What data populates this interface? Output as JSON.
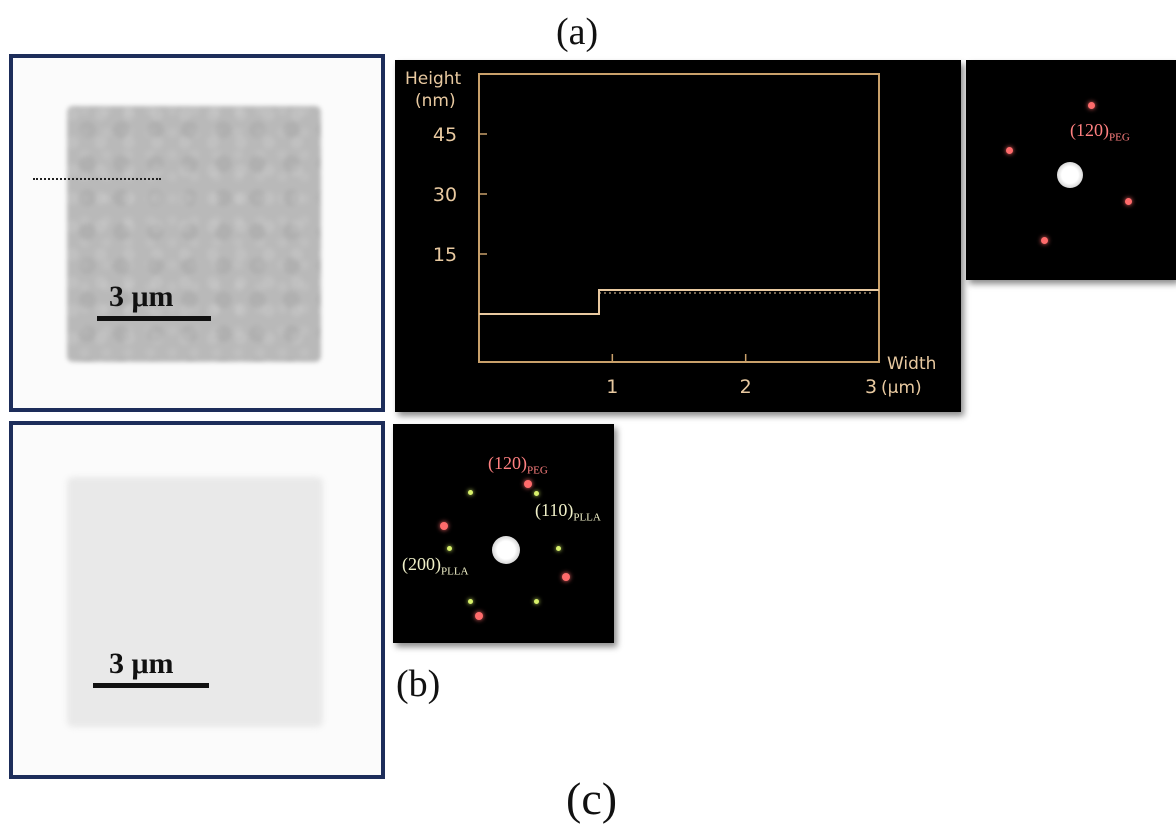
{
  "labels": {
    "a": "(a)",
    "b": "(b)",
    "c": "(c)"
  },
  "afm_a": {
    "scale_text": "3 μm"
  },
  "afm_b": {
    "scale_text": "3 μm"
  },
  "profile": {
    "ylabel_line1": "Height",
    "ylabel_line2": "(nm)",
    "xlabel_line1": "Width",
    "xlabel_unit": "(μm)",
    "ytick_labels": [
      "45",
      "30",
      "15"
    ],
    "xtick_labels": [
      "1",
      "2",
      "3"
    ],
    "colors": {
      "axis": "#c9a06a",
      "line": "#e8c9a0",
      "background": "#000000"
    }
  },
  "chart_data": {
    "type": "line",
    "title": "",
    "xlabel": "Width (μm)",
    "ylabel": "Height (nm)",
    "xlim": [
      0,
      3
    ],
    "ylim": [
      -12,
      60
    ],
    "yticks": [
      15,
      30,
      45
    ],
    "xticks": [
      1,
      2,
      3
    ],
    "grid": false,
    "series": [
      {
        "x": [
          0,
          0.9,
          0.9,
          3.0
        ],
        "y": [
          0,
          0,
          6,
          6
        ]
      }
    ]
  },
  "saed_a": {
    "label_main": "(120)",
    "label_sub": "PEG",
    "colors": {
      "peg": "#ff6b6b",
      "center": "#f2f2f2"
    }
  },
  "saed_b": {
    "peg_main": "(120)",
    "peg_sub": "PEG",
    "plla110_main": "(110)",
    "plla110_sub": "PLLA",
    "plla200_main": "(200)",
    "plla200_sub": "PLLA",
    "colors": {
      "peg": "#ff6b6b",
      "plla": "#d9f26b",
      "peg_label": "#ff8080",
      "plla_label": "#f0f0c8"
    }
  }
}
